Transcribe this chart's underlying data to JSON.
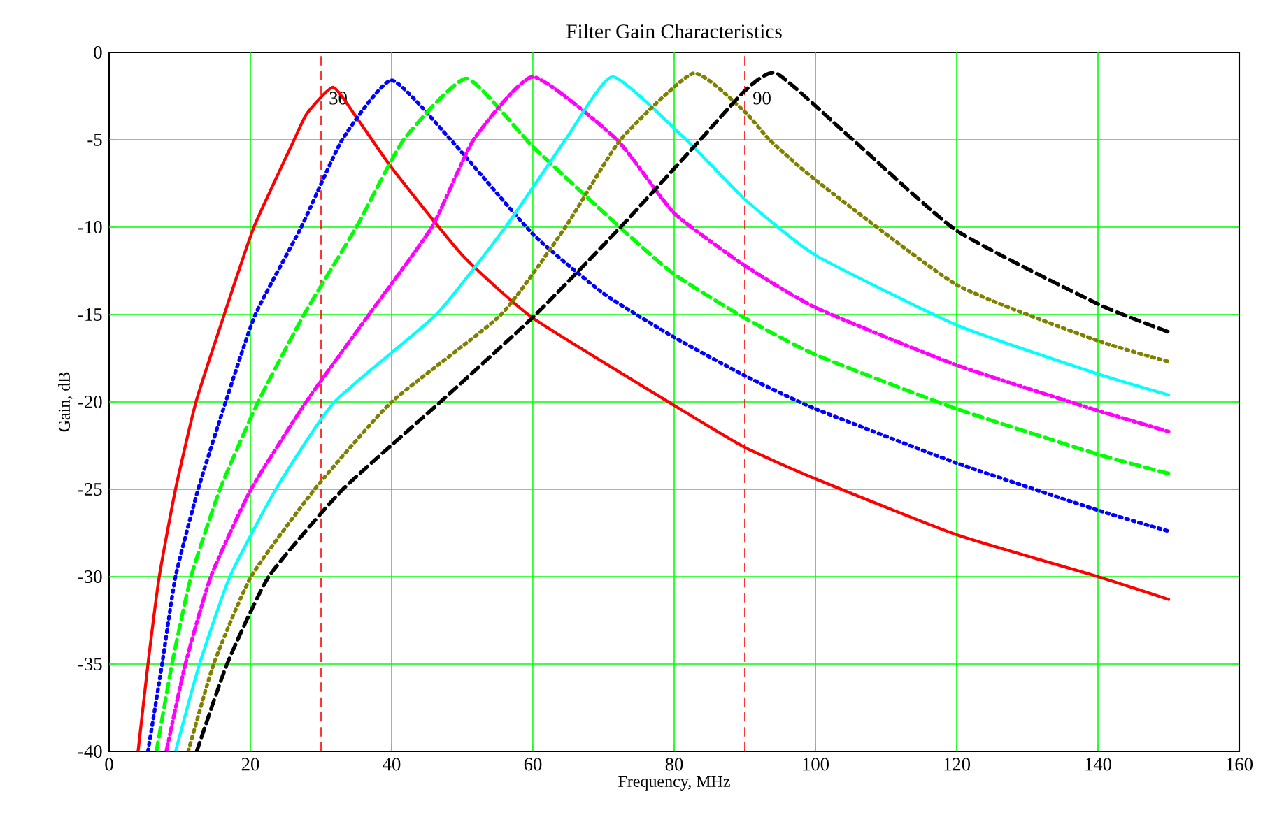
{
  "chart_data": {
    "type": "line",
    "title": "Filter Gain Characteristics",
    "xlabel": "Frequency, MHz",
    "ylabel": "Gain, dB",
    "xlim": [
      0,
      160
    ],
    "ylim": [
      -40,
      0
    ],
    "xticks": [
      0,
      20,
      40,
      60,
      80,
      100,
      120,
      140,
      160
    ],
    "yticks": [
      -40,
      -35,
      -30,
      -25,
      -20,
      -15,
      -10,
      -5,
      0
    ],
    "grid": true,
    "ref_lines": [
      {
        "axis": "x",
        "value": 30,
        "label": "30",
        "color": "#ff0000",
        "line_style": "dashed"
      },
      {
        "axis": "x",
        "value": 90,
        "label": "90",
        "color": "#ff0000",
        "line_style": "dashed"
      }
    ],
    "series": [
      {
        "color": "#ff0000",
        "line_style": "solid",
        "x": [
          4.1,
          5.5,
          7.1,
          9.4,
          12.3,
          16.3,
          20.5,
          26.2,
          28,
          31.7,
          35,
          40,
          50,
          60,
          80,
          90,
          100,
          120,
          140,
          150
        ],
        "values": [
          -40,
          -35,
          -30,
          -25,
          -20,
          -15,
          -10,
          -5,
          -3.5,
          -2,
          -3.7,
          -6.6,
          -11.6,
          -15.2,
          -20.2,
          -22.6,
          -24.4,
          -27.6,
          -30,
          -31.3
        ]
      },
      {
        "color": "#0000ff",
        "line_style": "dotted",
        "x": [
          5.5,
          7.5,
          9.4,
          12.6,
          16.5,
          20.7,
          27.2,
          33,
          40,
          48.8,
          60,
          70,
          80,
          90,
          100,
          120,
          140,
          150
        ],
        "values": [
          -40,
          -35,
          -30,
          -25,
          -20,
          -15,
          -10,
          -5,
          -1.6,
          -5.2,
          -10.4,
          -13.8,
          -16.3,
          -18.5,
          -20.4,
          -23.5,
          -26.2,
          -27.4
        ]
      },
      {
        "color": "#00ff00",
        "line_style": "dashed",
        "x": [
          6.7,
          8.9,
          11.6,
          15.7,
          21.1,
          27.6,
          35,
          41.7,
          50.6,
          60,
          72.3,
          80,
          90,
          100,
          120,
          140,
          150
        ],
        "values": [
          -40,
          -35,
          -30,
          -25,
          -20,
          -15,
          -10,
          -5,
          -1.5,
          -5.4,
          -10,
          -12.7,
          -15.2,
          -17.3,
          -20.4,
          -23,
          -24.1
        ]
      },
      {
        "color": "#ff00ff",
        "line_style": "dashdot",
        "x": [
          8.1,
          10.8,
          14.4,
          20.1,
          27.9,
          36.8,
          45.7,
          51.6,
          60,
          71.9,
          80,
          90,
          100,
          120,
          140,
          150
        ],
        "values": [
          -40,
          -35,
          -30,
          -25,
          -20,
          -15,
          -10,
          -5,
          -1.4,
          -5,
          -9.2,
          -12.2,
          -14.6,
          -17.9,
          -20.5,
          -21.7
        ]
      },
      {
        "color": "#00ffff",
        "line_style": "solid",
        "x": [
          9.4,
          12.8,
          17.1,
          23.6,
          31.9,
          46.3,
          56.1,
          64.6,
          71.3,
          81.7,
          90,
          100,
          120,
          140,
          150
        ],
        "values": [
          -40,
          -35,
          -30,
          -25,
          -20,
          -15,
          -10,
          -5,
          -1.4,
          -5,
          -8.4,
          -11.6,
          -15.6,
          -18.4,
          -19.6
        ]
      },
      {
        "color": "#808000",
        "line_style": "dotted",
        "x": [
          11.2,
          14.8,
          20.1,
          29.1,
          40,
          55.5,
          64.6,
          72.4,
          82.7,
          90,
          93.5,
          100,
          120,
          140,
          150
        ],
        "values": [
          -40,
          -35,
          -30,
          -25,
          -20,
          -15,
          -10,
          -5,
          -1.2,
          -3.4,
          -5,
          -7.3,
          -13.3,
          -16.5,
          -17.7
        ]
      },
      {
        "color": "#000000",
        "line_style": "dashed",
        "x": [
          12.4,
          16.7,
          22.6,
          33.1,
          46.9,
          60.4,
          72.4,
          83.7,
          90,
          94.5,
          105.3,
          120,
          140,
          150
        ],
        "values": [
          -40,
          -35,
          -30,
          -25,
          -20,
          -15,
          -10,
          -5,
          -2.2,
          -1.2,
          -5,
          -10.2,
          -14.4,
          -16
        ]
      }
    ]
  }
}
